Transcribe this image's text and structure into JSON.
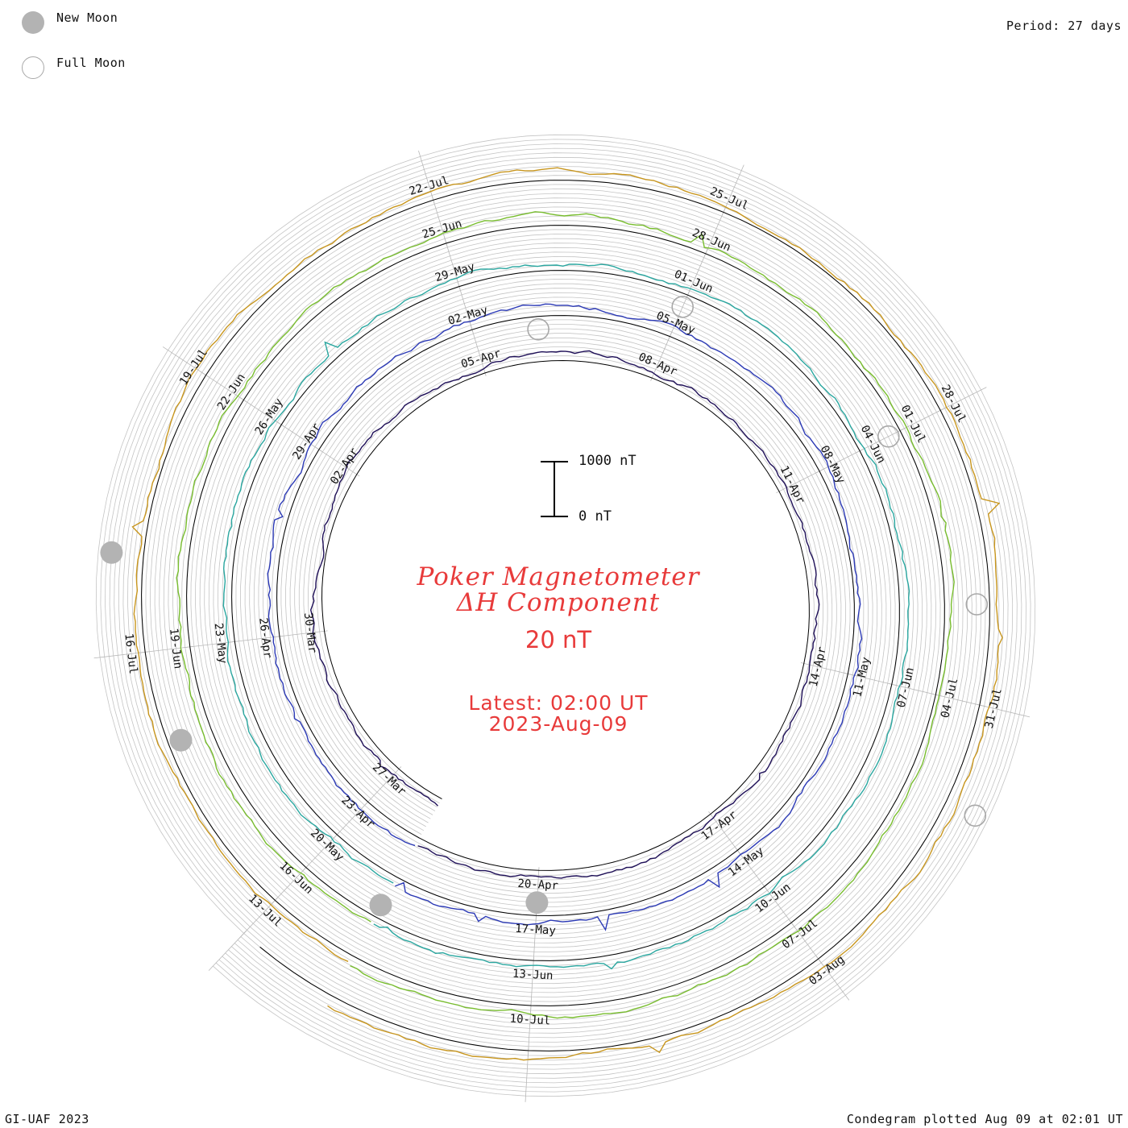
{
  "legend": {
    "new_moon_label": "New Moon",
    "full_moon_label": "Full Moon",
    "period": "Period: 27 days"
  },
  "center": {
    "title_line1": "Poker Magnetometer",
    "title_line2": "ΔH Component",
    "scale_value": "20 nT",
    "latest": "Latest: 02:00 UT",
    "date": "2023-Aug-09"
  },
  "scale_bar": {
    "top_label": "1000 nT",
    "bottom_label": "0 nT"
  },
  "footer": {
    "credit": "GI-UAF 2023",
    "plotted": "Condegram plotted Aug 09 at 02:01 UT"
  },
  "colors": {
    "title": "#e83a3a",
    "new_moon_fill": "#b3b3b3",
    "full_moon_stroke": "#a8a8a8"
  },
  "chart_data": {
    "type": "line",
    "subtype": "spiral condegram",
    "period_days": 27,
    "start": "2023-03-26",
    "end": "2023-08-09",
    "units": "nT",
    "rotations": [
      {
        "color": "#1f1058",
        "tick_labels": [
          "27-Mar",
          "30-Mar",
          "02-Apr",
          "05-Apr",
          "08-Apr",
          "11-Apr",
          "14-Apr",
          "17-Apr",
          "20-Apr"
        ]
      },
      {
        "color": "#2c3ab6",
        "tick_labels": [
          "23-Apr",
          "26-Apr",
          "29-Apr",
          "02-May",
          "05-May",
          "08-May",
          "11-May",
          "14-May",
          "17-May"
        ]
      },
      {
        "color": "#2aa7a0",
        "tick_labels": [
          "20-May",
          "23-May",
          "26-May",
          "29-May",
          "01-Jun",
          "04-Jun",
          "07-Jun",
          "10-Jun",
          "13-Jun"
        ]
      },
      {
        "color": "#78bd2e",
        "tick_labels": [
          "16-Jun",
          "19-Jun",
          "22-Jun",
          "25-Jun",
          "28-Jun",
          "01-Jul",
          "04-Jul",
          "07-Jul",
          "10-Jul"
        ]
      },
      {
        "color": "#c8961e",
        "tick_labels": [
          "13-Jul",
          "16-Jul",
          "19-Jul",
          "22-Jul",
          "25-Jul",
          "28-Jul",
          "31-Jul",
          "03-Aug"
        ]
      }
    ],
    "new_moons": [
      "2023-04-20",
      "2023-05-19",
      "2023-06-18",
      "2023-07-17"
    ],
    "full_moons": [
      "2023-04-06",
      "2023-05-05",
      "2023-06-04",
      "2023-07-03",
      "2023-08-01"
    ]
  }
}
